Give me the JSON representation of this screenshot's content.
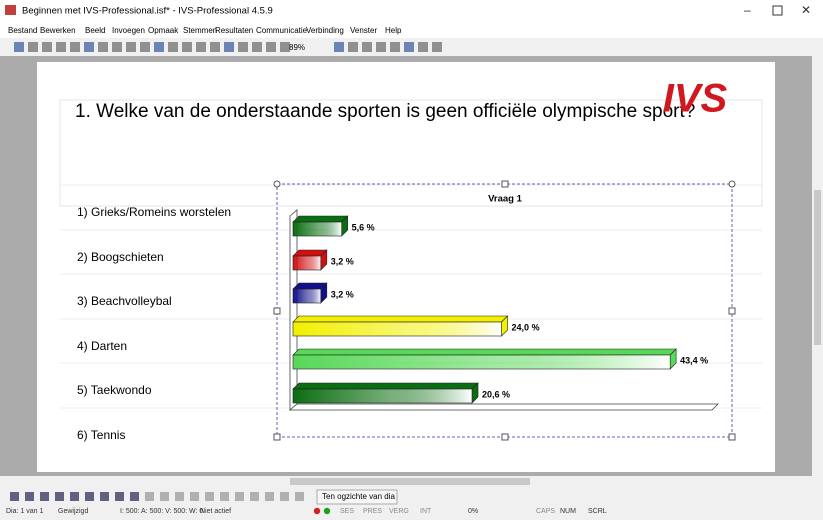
{
  "window": {
    "title": "Beginnen met IVS-Professional.isf* - IVS-Professional 4.5.9"
  },
  "menu": [
    "Bestand",
    "Bewerken",
    "Beeld",
    "Invoegen",
    "Opmaak",
    "Stemmen",
    "Resultaten",
    "Communicatie",
    "Verbinding",
    "Venster",
    "Help"
  ],
  "toolbar": {
    "zoom": "89%"
  },
  "slide": {
    "logo": "IVS",
    "question": "1. Welke van de onderstaande sporten is geen officiële olympische sport?",
    "answers": [
      "1) Grieks/Romeins worstelen",
      "2) Boogschieten",
      "3) Beachvolleybal",
      "4) Darten",
      "5) Taekwondo",
      "6) Tennis"
    ]
  },
  "chart_data": {
    "type": "bar",
    "orientation": "horizontal",
    "title": "Vraag 1",
    "values": [
      5.6,
      3.2,
      3.2,
      24.0,
      43.4,
      20.6
    ],
    "value_labels": [
      "5,6 %",
      "3,2 %",
      "3,2 %",
      "24,0 %",
      "43,4 %",
      "20,6 %"
    ],
    "colors": [
      "#0b6e12",
      "#d01010",
      "#10108a",
      "#f2f000",
      "#58d858",
      "#0b6e12"
    ]
  },
  "navbar": {
    "button": "Ten ogzichte van dia"
  },
  "status": [
    "Dia: 1 van 1",
    "Gewijzigd",
    "I: 500:  A: 500:  V: 500:  W: 0",
    "Niet actief",
    "SES",
    "PRES",
    "VERG",
    "INT",
    "0%",
    "CAPS",
    "NUM",
    "SCRL"
  ]
}
